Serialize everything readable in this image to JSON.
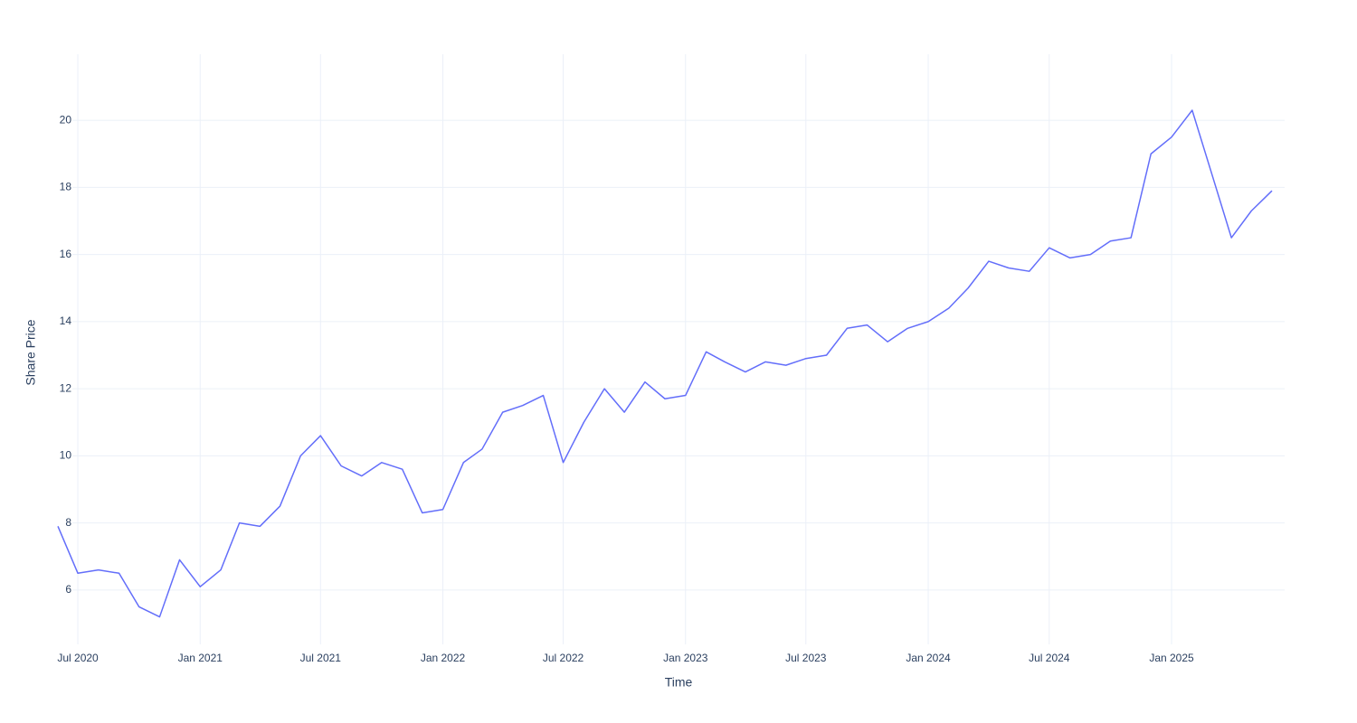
{
  "chart_data": {
    "type": "line",
    "x_label": "Time",
    "y_label": "Share Price",
    "x": [
      "2020-06",
      "2020-07",
      "2020-08",
      "2020-09",
      "2020-10",
      "2020-11",
      "2020-12",
      "2021-01",
      "2021-02",
      "2021-03",
      "2021-04",
      "2021-05",
      "2021-06",
      "2021-07",
      "2021-08",
      "2021-09",
      "2021-10",
      "2021-11",
      "2021-12",
      "2022-01",
      "2022-02",
      "2022-03",
      "2022-04",
      "2022-05",
      "2022-06",
      "2022-07",
      "2022-08",
      "2022-09",
      "2022-10",
      "2022-11",
      "2022-12",
      "2023-01",
      "2023-02",
      "2023-03",
      "2023-04",
      "2023-05",
      "2023-06",
      "2023-07",
      "2023-08",
      "2023-09",
      "2023-10",
      "2023-11",
      "2023-12",
      "2024-01",
      "2024-02",
      "2024-03",
      "2024-04",
      "2024-05",
      "2024-06",
      "2024-07",
      "2024-08",
      "2024-09",
      "2024-10",
      "2024-11",
      "2024-12",
      "2025-01",
      "2025-02",
      "2025-03",
      "2025-04",
      "2025-05",
      "2025-06"
    ],
    "series": [
      {
        "name": "Share Price",
        "color": "#636efa",
        "values": [
          7.9,
          6.5,
          6.6,
          6.5,
          5.5,
          5.2,
          6.9,
          6.1,
          6.6,
          8.0,
          7.9,
          8.5,
          10.0,
          10.6,
          9.7,
          9.4,
          9.8,
          9.6,
          8.3,
          8.4,
          9.8,
          10.2,
          11.3,
          11.5,
          11.8,
          9.8,
          11.0,
          12.0,
          11.3,
          12.2,
          11.7,
          11.8,
          13.1,
          12.8,
          12.5,
          12.8,
          12.7,
          12.9,
          13.0,
          13.8,
          13.9,
          13.4,
          13.8,
          14.0,
          14.4,
          15.0,
          15.8,
          15.6,
          15.5,
          16.2,
          15.9,
          16.0,
          16.4,
          16.5,
          19.0,
          19.5,
          20.3,
          18.5,
          16.5,
          17.3,
          17.9
        ]
      }
    ],
    "xlim": [
      "2020-06",
      "2025-06"
    ],
    "xticks": [
      {
        "value": "2020-07",
        "label": "Jul 2020"
      },
      {
        "value": "2021-01",
        "label": "Jan 2021"
      },
      {
        "value": "2021-07",
        "label": "Jul 2021"
      },
      {
        "value": "2022-01",
        "label": "Jan 2022"
      },
      {
        "value": "2022-07",
        "label": "Jul 2022"
      },
      {
        "value": "2023-01",
        "label": "Jan 2023"
      },
      {
        "value": "2023-07",
        "label": "Jul 2023"
      },
      {
        "value": "2024-01",
        "label": "Jan 2024"
      },
      {
        "value": "2024-07",
        "label": "Jul 2024"
      },
      {
        "value": "2025-01",
        "label": "Jan 2025"
      }
    ],
    "ylim": [
      4.38,
      21.97
    ],
    "yticks": [
      6,
      8,
      10,
      12,
      14,
      16,
      18,
      20
    ],
    "grid": true
  }
}
